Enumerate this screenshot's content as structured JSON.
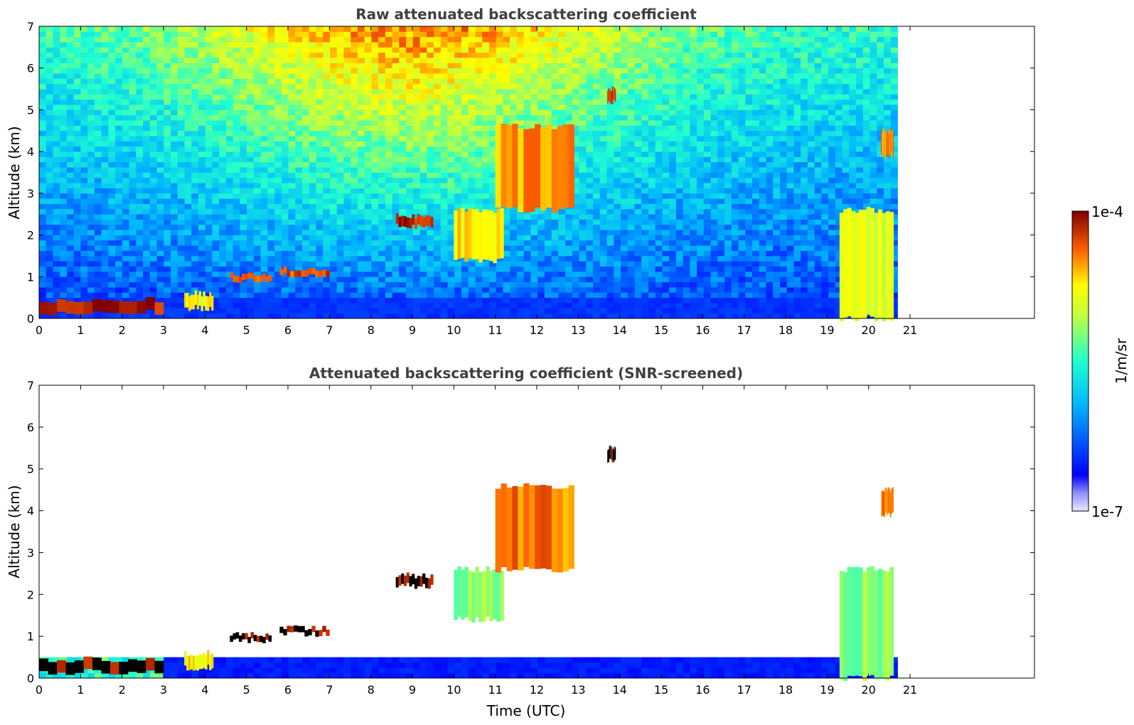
{
  "chart_data": [
    {
      "type": "heatmap",
      "title": "Raw attenuated backscattering coefficient",
      "xlabel": "",
      "ylabel": "Altitude (km)",
      "xlim": [
        0,
        24
      ],
      "ylim": [
        0,
        7
      ],
      "x_ticks": [
        "0",
        "1",
        "2",
        "3",
        "4",
        "5",
        "6",
        "7",
        "8",
        "9",
        "10",
        "11",
        "12",
        "13",
        "14",
        "15",
        "16",
        "17",
        "18",
        "19",
        "20",
        "21"
      ],
      "y_ticks": [
        "0",
        "1",
        "2",
        "3",
        "4",
        "5",
        "6",
        "7"
      ],
      "data_end_time": 20.7,
      "screened": false,
      "layers": [
        {
          "t0": 0.0,
          "t1": 3.0,
          "h0": 0.15,
          "h1": 0.45,
          "level": 0.95
        },
        {
          "t0": 3.5,
          "t1": 4.2,
          "h0": 0.25,
          "h1": 0.6,
          "level": 0.75
        },
        {
          "t0": 4.6,
          "t1": 5.6,
          "h0": 0.9,
          "h1": 1.05,
          "level": 0.9
        },
        {
          "t0": 5.8,
          "t1": 7.0,
          "h0": 1.05,
          "h1": 1.2,
          "level": 0.9
        },
        {
          "t0": 8.6,
          "t1": 9.5,
          "h0": 2.2,
          "h1": 2.45,
          "level": 0.95
        },
        {
          "t0": 10.0,
          "t1": 11.2,
          "h0": 1.4,
          "h1": 2.6,
          "level": 0.75
        },
        {
          "t0": 11.0,
          "t1": 12.9,
          "h0": 2.6,
          "h1": 4.6,
          "level": 0.82
        },
        {
          "t0": 13.7,
          "t1": 13.9,
          "h0": 5.2,
          "h1": 5.5,
          "level": 0.9
        },
        {
          "t0": 19.3,
          "t1": 20.6,
          "h0": 0.0,
          "h1": 2.6,
          "level": 0.7
        },
        {
          "t0": 20.3,
          "t1": 20.6,
          "h0": 3.9,
          "h1": 4.5,
          "level": 0.85
        }
      ]
    },
    {
      "type": "heatmap",
      "title": "Attenuated backscattering coefficient (SNR-screened)",
      "xlabel": "Time (UTC)",
      "ylabel": "Altitude (km)",
      "xlim": [
        0,
        24
      ],
      "ylim": [
        0,
        7
      ],
      "x_ticks": [
        "0",
        "1",
        "2",
        "3",
        "4",
        "5",
        "6",
        "7",
        "8",
        "9",
        "10",
        "11",
        "12",
        "13",
        "14",
        "15",
        "16",
        "17",
        "18",
        "19",
        "20",
        "21"
      ],
      "y_ticks": [
        "0",
        "1",
        "2",
        "3",
        "4",
        "5",
        "6",
        "7"
      ],
      "data_end_time": 20.7,
      "screened": true,
      "layers": [
        {
          "t0": 0.0,
          "t1": 3.0,
          "h0": 0.15,
          "h1": 0.45,
          "level": 0.98
        },
        {
          "t0": 3.5,
          "t1": 4.2,
          "h0": 0.25,
          "h1": 0.6,
          "level": 0.75
        },
        {
          "t0": 4.6,
          "t1": 5.6,
          "h0": 0.9,
          "h1": 1.05,
          "level": 0.98
        },
        {
          "t0": 5.8,
          "t1": 7.0,
          "h0": 1.05,
          "h1": 1.2,
          "level": 0.98
        },
        {
          "t0": 8.6,
          "t1": 9.5,
          "h0": 2.2,
          "h1": 2.45,
          "level": 0.98
        },
        {
          "t0": 10.0,
          "t1": 11.2,
          "h0": 1.4,
          "h1": 2.6,
          "level": 0.6
        },
        {
          "t0": 11.0,
          "t1": 12.9,
          "h0": 2.6,
          "h1": 4.6,
          "level": 0.85
        },
        {
          "t0": 13.7,
          "t1": 13.9,
          "h0": 5.2,
          "h1": 5.5,
          "level": 0.98
        },
        {
          "t0": 19.3,
          "t1": 20.6,
          "h0": 0.0,
          "h1": 2.6,
          "level": 0.6
        },
        {
          "t0": 20.3,
          "t1": 20.6,
          "h0": 3.9,
          "h1": 4.5,
          "level": 0.85
        }
      ]
    }
  ],
  "colorbar": {
    "max_label": "1e-4",
    "min_label": "1e-7",
    "unit_label": "1/m/sr",
    "colormap": "jet",
    "scale": "log"
  },
  "colors": {
    "axis": "#000000",
    "title": "#404040",
    "background": "#ffffff"
  }
}
